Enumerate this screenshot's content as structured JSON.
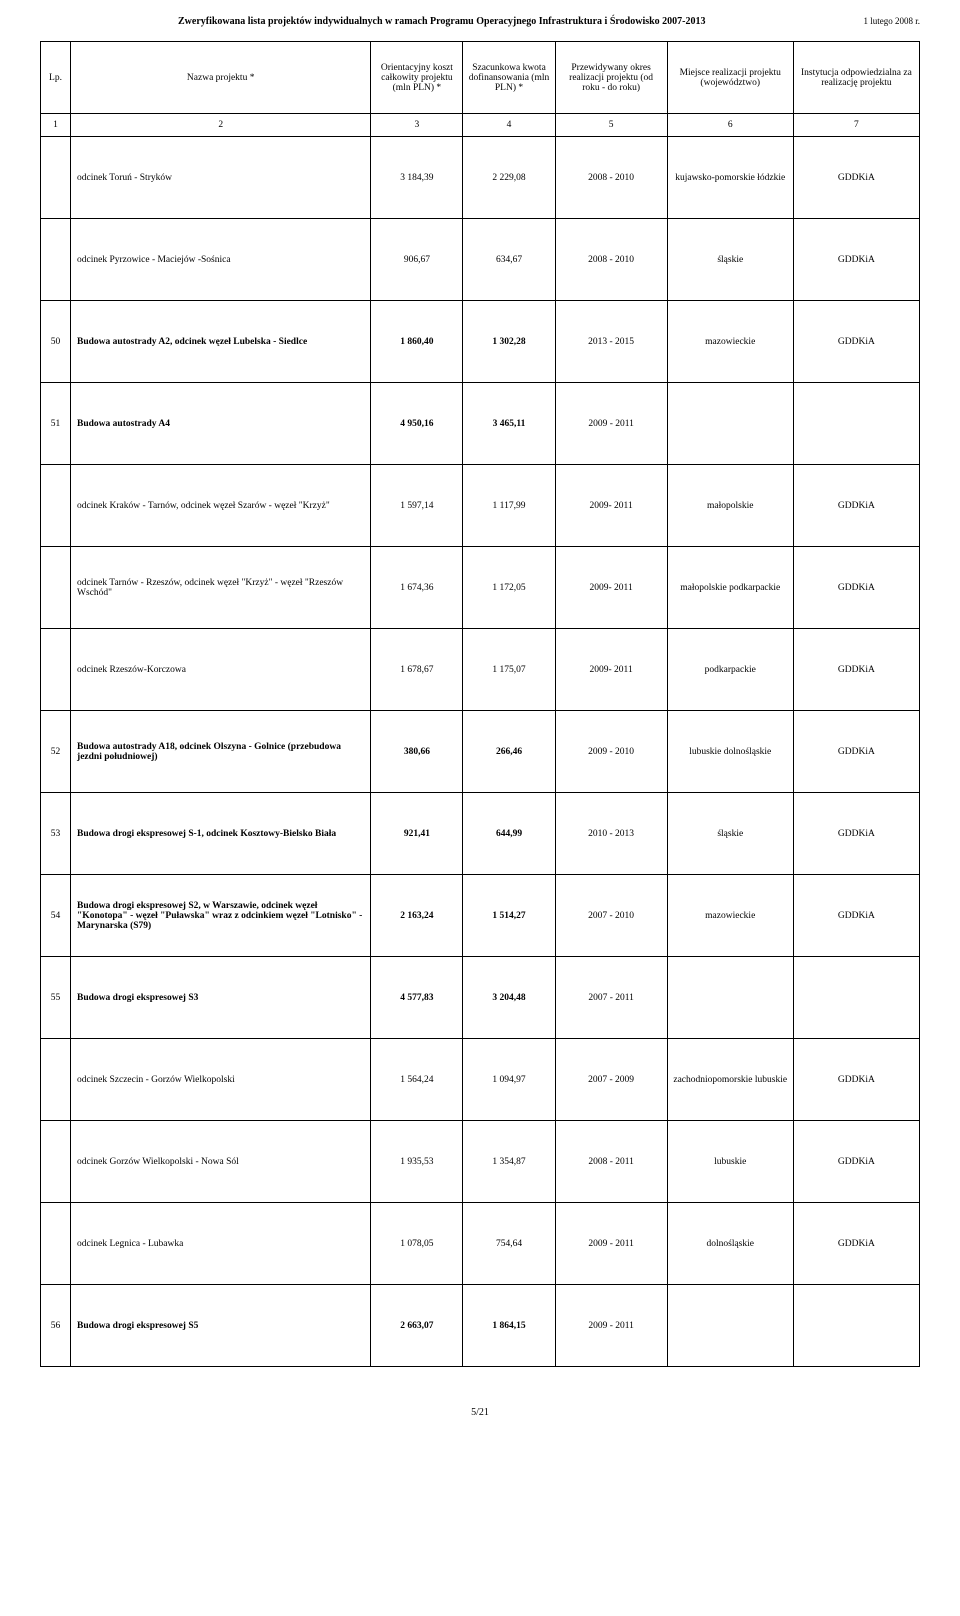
{
  "header": {
    "doc_title": "Zweryfikowana lista projektów indywidualnych w ramach Programu Operacyjnego Infrastruktura i Środowisko 2007-2013",
    "doc_date": "1 lutego 2008 r."
  },
  "columns": {
    "lp": "Lp.",
    "name": "Nazwa projektu *",
    "k1": "Orientacyjny koszt całkowity projektu (mln PLN) *",
    "k2": "Szacunkowa kwota dofinansowania (mln PLN) *",
    "okres": "Przewidywany okres realizacji projektu (od roku - do roku)",
    "miejsce": "Miejsce realizacji projektu (województwo)",
    "inst": "Instytucja odpowiedzialna za realizację projektu"
  },
  "numrow": {
    "c1": "1",
    "c2": "2",
    "c3": "3",
    "c4": "4",
    "c5": "5",
    "c6": "6",
    "c7": "7"
  },
  "rows": [
    {
      "lp": "",
      "bold": false,
      "name": "odcinek Toruń - Stryków",
      "v1": "3 184,39",
      "v2": "2 229,08",
      "okres": "2008 - 2010",
      "miejsce": "kujawsko-pomorskie łódzkie",
      "inst": "GDDKiA"
    },
    {
      "lp": "",
      "bold": false,
      "name": "odcinek Pyrzowice - Maciejów -Sośnica",
      "v1": "906,67",
      "v2": "634,67",
      "okres": "2008 - 2010",
      "miejsce": "śląskie",
      "inst": "GDDKiA"
    },
    {
      "lp": "50",
      "bold": true,
      "name": "Budowa autostrady A2, odcinek węzeł Lubelska - Siedlce",
      "v1": "1 860,40",
      "v2": "1 302,28",
      "okres": "2013 - 2015",
      "miejsce": "mazowieckie",
      "inst": "GDDKiA"
    },
    {
      "lp": "51",
      "bold": true,
      "name": "Budowa autostrady A4",
      "v1": "4 950,16",
      "v2": "3 465,11",
      "okres": "2009 - 2011",
      "miejsce": "",
      "inst": ""
    },
    {
      "lp": "",
      "bold": false,
      "name": "odcinek Kraków - Tarnów, odcinek węzeł Szarów - węzeł \"Krzyż\"",
      "v1": "1 597,14",
      "v2": "1 117,99",
      "okres": "2009- 2011",
      "miejsce": "małopolskie",
      "inst": "GDDKiA"
    },
    {
      "lp": "",
      "bold": false,
      "name": "odcinek Tarnów - Rzeszów, odcinek węzeł \"Krzyż\" - węzeł \"Rzeszów Wschód\"",
      "v1": "1 674,36",
      "v2": "1 172,05",
      "okres": "2009- 2011",
      "miejsce": "małopolskie podkarpackie",
      "inst": "GDDKiA"
    },
    {
      "lp": "",
      "bold": false,
      "name": "odcinek Rzeszów-Korczowa",
      "v1": "1 678,67",
      "v2": "1 175,07",
      "okres": "2009- 2011",
      "miejsce": "podkarpackie",
      "inst": "GDDKiA"
    },
    {
      "lp": "52",
      "bold": true,
      "name": "Budowa autostrady A18, odcinek Olszyna - Golnice (przebudowa jezdni południowej)",
      "v1": "380,66",
      "v2": "266,46",
      "okres": "2009 - 2010",
      "miejsce": "lubuskie dolnośląskie",
      "inst": "GDDKiA"
    },
    {
      "lp": "53",
      "bold": true,
      "name": "Budowa drogi ekspresowej S-1, odcinek Kosztowy-Bielsko Biała",
      "v1": "921,41",
      "v2": "644,99",
      "okres": "2010 - 2013",
      "miejsce": "śląskie",
      "inst": "GDDKiA"
    },
    {
      "lp": "54",
      "bold": true,
      "name": "Budowa drogi ekspresowej S2, w Warszawie, odcinek węzeł \"Konotopa\" - węzeł \"Puławska\" wraz z odcinkiem węzeł \"Lotnisko\" - Marynarska (S79)",
      "v1": "2 163,24",
      "v2": "1 514,27",
      "okres": "2007 - 2010",
      "miejsce": "mazowieckie",
      "inst": "GDDKiA"
    },
    {
      "lp": "55",
      "bold": true,
      "name": "Budowa drogi ekspresowej S3",
      "v1": "4 577,83",
      "v2": "3 204,48",
      "okres": "2007 - 2011",
      "miejsce": "",
      "inst": ""
    },
    {
      "lp": "",
      "bold": false,
      "name": "odcinek Szczecin - Gorzów Wielkopolski",
      "v1": "1 564,24",
      "v2": "1 094,97",
      "okres": "2007 - 2009",
      "miejsce": "zachodniopomorskie lubuskie",
      "inst": "GDDKiA"
    },
    {
      "lp": "",
      "bold": false,
      "name": "odcinek Gorzów Wielkopolski - Nowa Sól",
      "v1": "1 935,53",
      "v2": "1 354,87",
      "okres": "2008 - 2011",
      "miejsce": "lubuskie",
      "inst": "GDDKiA"
    },
    {
      "lp": "",
      "bold": false,
      "name": "odcinek Legnica - Lubawka",
      "v1": "1 078,05",
      "v2": "754,64",
      "okres": "2009 - 2011",
      "miejsce": "dolnośląskie",
      "inst": "GDDKiA"
    },
    {
      "lp": "56",
      "bold": true,
      "name": "Budowa drogi ekspresowej S5",
      "v1": "2 663,07",
      "v2": "1 864,15",
      "okres": "2009 - 2011",
      "miejsce": "",
      "inst": ""
    }
  ],
  "footer": {
    "page": "5/21"
  }
}
